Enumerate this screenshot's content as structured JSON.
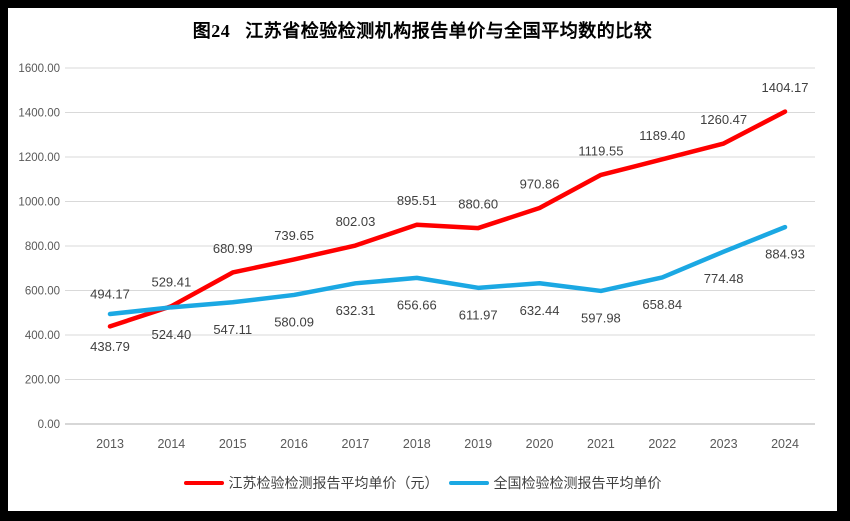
{
  "title": "图24   江苏省检验检测机构报告单价与全国平均数的比较",
  "chart_data": {
    "type": "line",
    "categories": [
      "2013",
      "2014",
      "2015",
      "2016",
      "2017",
      "2018",
      "2019",
      "2020",
      "2021",
      "2022",
      "2023",
      "2024"
    ],
    "series": [
      {
        "key": "jiangsu",
        "name": "江苏检验检测报告平均单价（元）",
        "color": "#FF0000",
        "values": [
          438.79,
          529.41,
          680.99,
          739.65,
          802.03,
          895.51,
          880.6,
          970.86,
          1119.55,
          1189.4,
          1260.47,
          1404.17
        ],
        "data_labels": "above",
        "label_overrides": {
          "0": "below"
        }
      },
      {
        "key": "national",
        "name": "全国检验检测报告平均单价",
        "color": "#1BA8E3",
        "values": [
          494.17,
          524.4,
          547.11,
          580.09,
          632.31,
          656.66,
          611.97,
          632.44,
          597.98,
          658.84,
          774.48,
          884.93
        ],
        "data_labels": "below",
        "label_overrides": {
          "0": "above"
        }
      }
    ],
    "xlabel": "",
    "ylabel": "",
    "ylim": [
      0,
      1600
    ],
    "ytick_step": 200,
    "yticks": [
      "0.00",
      "200.00",
      "400.00",
      "600.00",
      "800.00",
      "1000.00",
      "1200.00",
      "1400.00",
      "1600.00"
    ],
    "label_decimals": 2,
    "grid": true,
    "legend_position": "bottom"
  },
  "colors": {
    "frame": "#000000",
    "background": "#FFFFFF",
    "grid": "#D9D9D9",
    "axis_line": "#BFBFBF",
    "tick_text": "#595959",
    "data_label_text": "#404040",
    "legend_text": "#404040"
  }
}
